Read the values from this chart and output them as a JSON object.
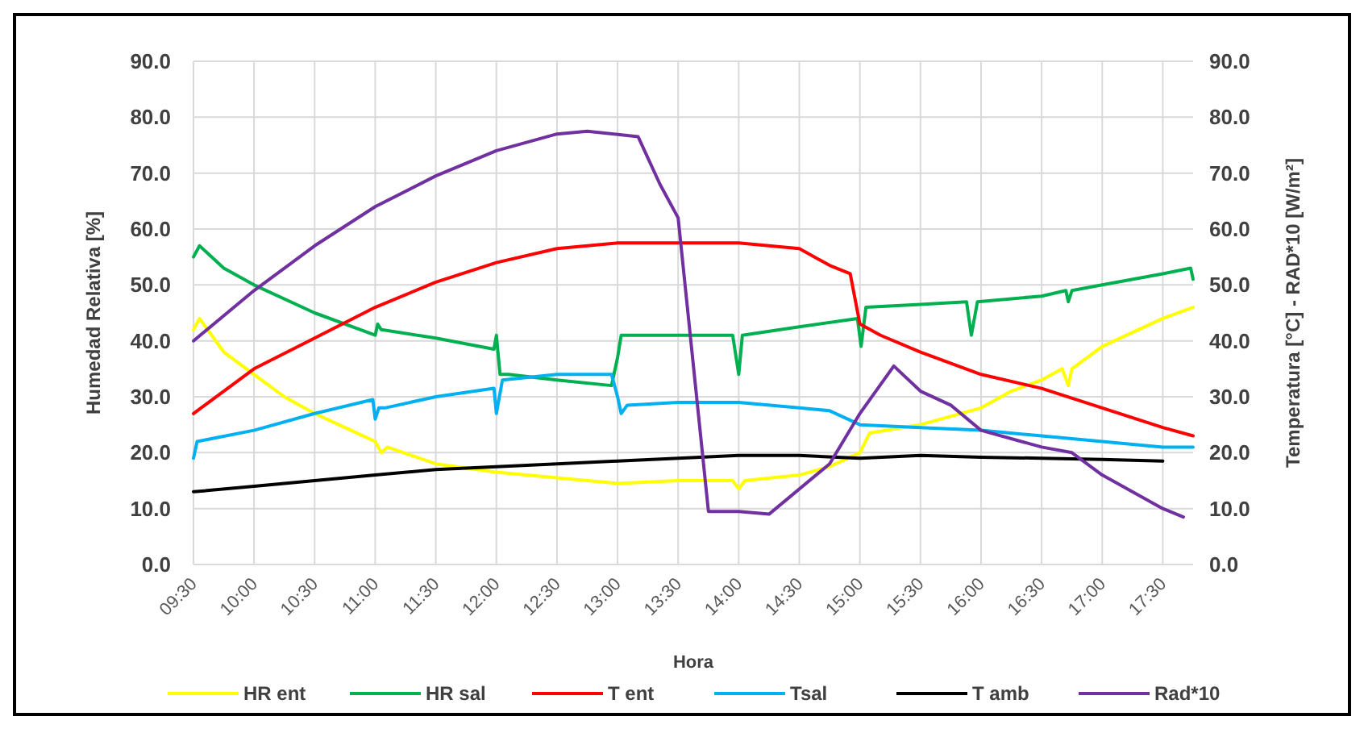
{
  "chart_data": {
    "type": "line",
    "xlabel": "Hora",
    "ylabel": "Humedad Relativa [%]",
    "y2label": "Temperatura [°C] - RAD*10 [W/m²]",
    "xlim": [
      9.5,
      17.75
    ],
    "xticks": [
      {
        "value": 9.5,
        "label": "09:30"
      },
      {
        "value": 10,
        "label": "10:00"
      },
      {
        "value": 10.5,
        "label": "10:30"
      },
      {
        "value": 11,
        "label": "11:00"
      },
      {
        "value": 11.5,
        "label": "11:30"
      },
      {
        "value": 12,
        "label": "12:00"
      },
      {
        "value": 12.5,
        "label": "12:30"
      },
      {
        "value": 13,
        "label": "13:00"
      },
      {
        "value": 13.5,
        "label": "13:30"
      },
      {
        "value": 14,
        "label": "14:00"
      },
      {
        "value": 14.5,
        "label": "14:30"
      },
      {
        "value": 15,
        "label": "15:00"
      },
      {
        "value": 15.5,
        "label": "15:30"
      },
      {
        "value": 16,
        "label": "16:00"
      },
      {
        "value": 16.5,
        "label": "16:30"
      },
      {
        "value": 17,
        "label": "17:00"
      },
      {
        "value": 17.5,
        "label": "17:30"
      }
    ],
    "ylim": [
      0,
      90
    ],
    "yticks": [
      {
        "value": 0,
        "label": "0.0"
      },
      {
        "value": 10,
        "label": "10.0"
      },
      {
        "value": 20,
        "label": "20.0"
      },
      {
        "value": 30,
        "label": "30.0"
      },
      {
        "value": 40,
        "label": "40.0"
      },
      {
        "value": 50,
        "label": "50.0"
      },
      {
        "value": 60,
        "label": "60.0"
      },
      {
        "value": 70,
        "label": "70.0"
      },
      {
        "value": 80,
        "label": "80.0"
      },
      {
        "value": 90,
        "label": "90.0"
      }
    ],
    "y2lim": [
      0,
      90
    ],
    "y2ticks": [
      {
        "value": 0,
        "label": "0.0"
      },
      {
        "value": 10,
        "label": "10.0"
      },
      {
        "value": 20,
        "label": "20.0"
      },
      {
        "value": 30,
        "label": "30.0"
      },
      {
        "value": 40,
        "label": "40.0"
      },
      {
        "value": 50,
        "label": "50.0"
      },
      {
        "value": 60,
        "label": "60.0"
      },
      {
        "value": 70,
        "label": "70.0"
      },
      {
        "value": 80,
        "label": "80.0"
      },
      {
        "value": 90,
        "label": "90.0"
      }
    ],
    "grid": true,
    "legend": "bottom",
    "marker": "none",
    "line_style": "solid",
    "series": [
      {
        "name": "HR ent",
        "color": "#ffff00",
        "x": [
          9.5,
          9.55,
          9.75,
          10,
          10.25,
          10.5,
          10.75,
          11,
          11.05,
          11.1,
          11.5,
          12,
          12.5,
          13,
          13.5,
          13.95,
          14,
          14.05,
          14.5,
          14.75,
          15,
          15.08,
          15.5,
          16,
          16.25,
          16.5,
          16.67,
          16.72,
          16.75,
          17,
          17.5,
          17.75
        ],
        "values": [
          42,
          44,
          38,
          34,
          30,
          27,
          24.5,
          22,
          20,
          21,
          18,
          16.5,
          15.5,
          14.5,
          15,
          15,
          13.5,
          15,
          16,
          17.5,
          20,
          23.5,
          25,
          28,
          31,
          33,
          35,
          32,
          35,
          39,
          44,
          46
        ]
      },
      {
        "name": "HR sal",
        "color": "#00b050",
        "x": [
          9.5,
          9.55,
          9.75,
          10,
          10.5,
          11,
          11.02,
          11.05,
          11.5,
          11.98,
          12,
          12.03,
          12.1,
          12.5,
          12.95,
          13,
          13.03,
          13.5,
          13.95,
          14,
          14.03,
          14.5,
          14.98,
          15.01,
          15.05,
          15.5,
          15.88,
          15.92,
          15.97,
          16.5,
          16.7,
          16.72,
          16.75,
          17,
          17.5,
          17.73,
          17.75
        ],
        "values": [
          55,
          57,
          53,
          50,
          45,
          41,
          43,
          42,
          40.5,
          38.5,
          41,
          34,
          34,
          33,
          32,
          37,
          41,
          41,
          41,
          34,
          41,
          42.5,
          44,
          39,
          46,
          46.5,
          47,
          41,
          47,
          48,
          49,
          47,
          49,
          50,
          52,
          53,
          51
        ]
      },
      {
        "name": "T ent",
        "color": "#ff0000",
        "x": [
          9.5,
          9.75,
          10,
          10.5,
          11,
          11.5,
          12,
          12.5,
          13,
          13.5,
          14,
          14.5,
          14.75,
          14.92,
          15,
          15.17,
          15.5,
          16,
          16.5,
          17,
          17.5,
          17.75
        ],
        "values": [
          27,
          31,
          35,
          40.5,
          46,
          50.5,
          54,
          56.5,
          57.5,
          57.5,
          57.5,
          56.5,
          53.5,
          52,
          43,
          41,
          38,
          34,
          31.5,
          28,
          24.5,
          23
        ]
      },
      {
        "name": "Tsal",
        "color": "#00b0f0",
        "x": [
          9.5,
          9.53,
          10,
          10.5,
          10.98,
          11,
          11.03,
          11.08,
          11.5,
          11.98,
          12,
          12.05,
          12.5,
          12.95,
          13,
          13.03,
          13.08,
          13.5,
          14,
          14.5,
          14.75,
          15,
          15.5,
          16,
          16.5,
          17,
          17.5,
          17.75
        ],
        "values": [
          19,
          22,
          24,
          27,
          29.5,
          26,
          28,
          28,
          30,
          31.5,
          27,
          33,
          34,
          34,
          30,
          27,
          28.5,
          29,
          29,
          28,
          27.5,
          25,
          24.5,
          24,
          23,
          22,
          21,
          21
        ]
      },
      {
        "name": "T amb",
        "color": "#000000",
        "x": [
          9.5,
          10,
          10.5,
          11,
          11.5,
          12,
          12.5,
          13,
          13.5,
          14,
          14.5,
          15,
          15.5,
          16,
          16.5,
          17,
          17.5
        ],
        "values": [
          13,
          14,
          15,
          16,
          17,
          17.5,
          18,
          18.5,
          19,
          19.5,
          19.5,
          19,
          19.5,
          19.2,
          19,
          18.8,
          18.5
        ]
      },
      {
        "name": "Rad*10",
        "color": "#7030a0",
        "x": [
          9.5,
          10,
          10.5,
          11,
          11.5,
          12,
          12.5,
          12.75,
          13.17,
          13.35,
          13.5,
          13.75,
          14,
          14.25,
          14.75,
          15,
          15.28,
          15.5,
          15.75,
          16,
          16.5,
          16.75,
          17,
          17.5,
          17.67
        ],
        "values": [
          40,
          49,
          57,
          64,
          69.5,
          74,
          77,
          77.5,
          76.5,
          68,
          62,
          9.5,
          9.5,
          9,
          18,
          27,
          35.5,
          31,
          28.5,
          24,
          21,
          20,
          16,
          10,
          8.5
        ]
      }
    ]
  }
}
